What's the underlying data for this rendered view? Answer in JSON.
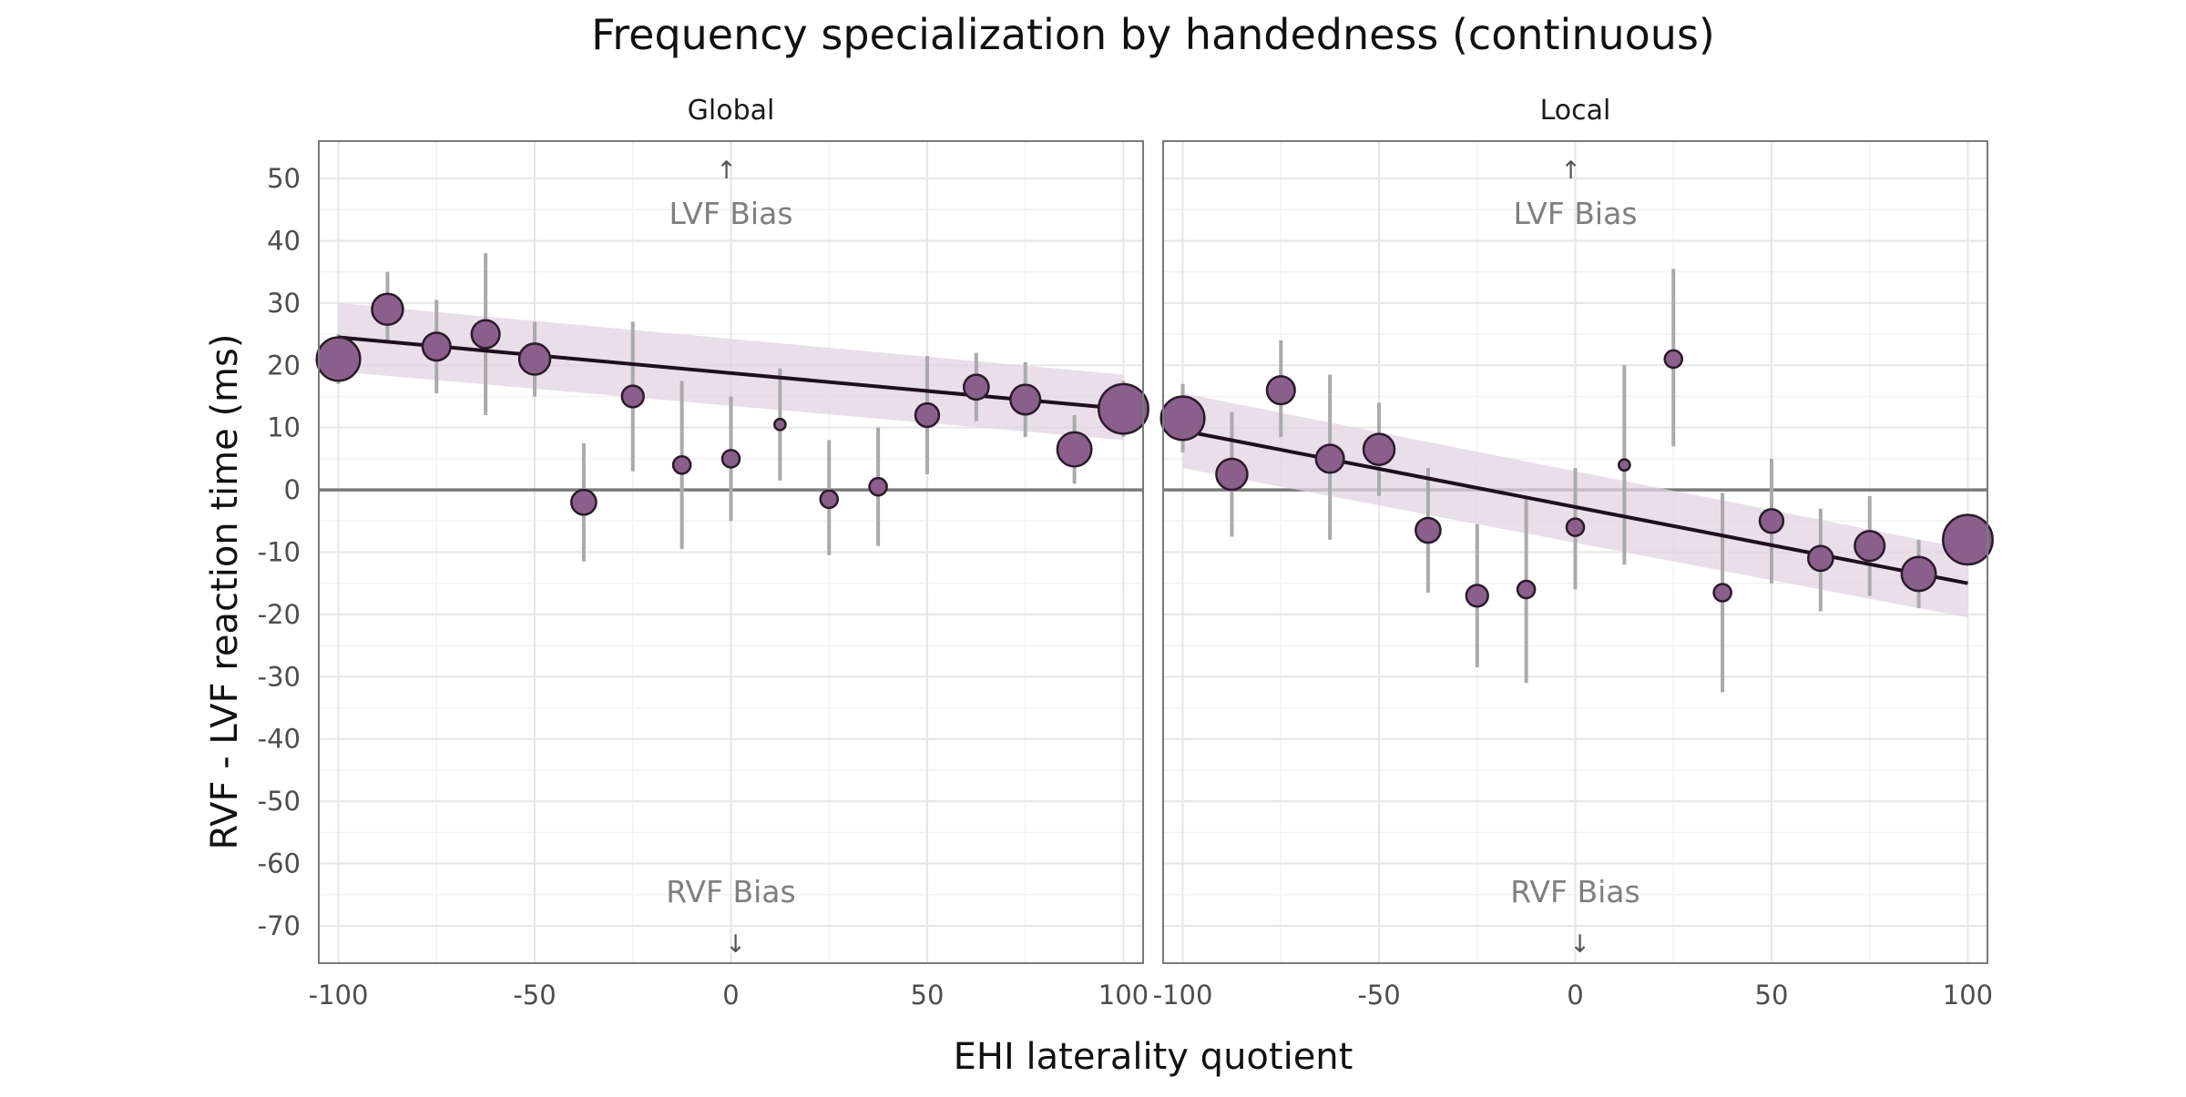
{
  "chart_data": {
    "type": "scatter",
    "title": "Frequency specialization by handedness (continuous)",
    "xlabel": "EHI laterality quotient",
    "ylabel": "RVF - LVF reaction time (ms)",
    "xlim": [
      -105,
      105
    ],
    "ylim": [
      -76,
      56
    ],
    "x_ticks": [
      -100,
      -50,
      0,
      50,
      100
    ],
    "y_ticks": [
      50,
      40,
      30,
      20,
      10,
      0,
      -10,
      -20,
      -30,
      -40,
      -50,
      -60,
      -70
    ],
    "grid": true,
    "reference_line_y": 0,
    "annotations": {
      "top_arrow": "↑",
      "top_label": "LVF Bias",
      "bottom_label": "RVF Bias",
      "bottom_arrow": "↓"
    },
    "colors": {
      "point_fill": "#8b5f8b",
      "point_stroke": "#2a1a2a",
      "ribbon": "#e3d3e2",
      "fit_line": "#1f0f1c",
      "error_bar": "#aaaaaa",
      "zero_line": "#7a7a7a"
    },
    "panels": [
      {
        "label": "Global",
        "fit": {
          "x": [
            -100,
            100
          ],
          "y": [
            24.5,
            13.0
          ]
        },
        "ribbon": {
          "x": [
            -100,
            100
          ],
          "lower": [
            19.0,
            8.0
          ],
          "upper": [
            30.0,
            18.5
          ]
        },
        "points": [
          {
            "x": -100,
            "y": 21.0,
            "ymin": 17.0,
            "ymax": 25.0,
            "size": 7
          },
          {
            "x": -87.5,
            "y": 29.0,
            "ymin": 23.5,
            "ymax": 35.0,
            "size": 5
          },
          {
            "x": -75,
            "y": 23.0,
            "ymin": 15.5,
            "ymax": 30.5,
            "size": 4.5
          },
          {
            "x": -62.5,
            "y": 25.0,
            "ymin": 12.0,
            "ymax": 38.0,
            "size": 4.5
          },
          {
            "x": -50,
            "y": 21.0,
            "ymin": 15.0,
            "ymax": 27.0,
            "size": 5
          },
          {
            "x": -37.5,
            "y": -2.0,
            "ymin": -11.5,
            "ymax": 7.5,
            "size": 4
          },
          {
            "x": -25,
            "y": 15.0,
            "ymin": 3.0,
            "ymax": 27.0,
            "size": 3.5
          },
          {
            "x": -12.5,
            "y": 4.0,
            "ymin": -9.5,
            "ymax": 17.5,
            "size": 2.8
          },
          {
            "x": 0,
            "y": 5.0,
            "ymin": -5.0,
            "ymax": 15.0,
            "size": 2.8
          },
          {
            "x": 12.5,
            "y": 10.5,
            "ymin": 1.5,
            "ymax": 19.5,
            "size": 1.8
          },
          {
            "x": 25,
            "y": -1.5,
            "ymin": -10.5,
            "ymax": 8.0,
            "size": 2.8
          },
          {
            "x": 37.5,
            "y": 0.5,
            "ymin": -9.0,
            "ymax": 10.0,
            "size": 2.8
          },
          {
            "x": 50,
            "y": 12.0,
            "ymin": 2.5,
            "ymax": 21.5,
            "size": 3.8
          },
          {
            "x": 62.5,
            "y": 16.5,
            "ymin": 11.0,
            "ymax": 22.0,
            "size": 4
          },
          {
            "x": 75,
            "y": 14.5,
            "ymin": 8.5,
            "ymax": 20.5,
            "size": 4.8
          },
          {
            "x": 87.5,
            "y": 6.5,
            "ymin": 1.0,
            "ymax": 12.0,
            "size": 5.5
          },
          {
            "x": 100,
            "y": 13.0,
            "ymin": 8.5,
            "ymax": 17.5,
            "size": 8
          }
        ]
      },
      {
        "label": "Local",
        "fit": {
          "x": [
            -100,
            100
          ],
          "y": [
            9.5,
            -15.0
          ]
        },
        "ribbon": {
          "x": [
            -100,
            100
          ],
          "lower": [
            3.5,
            -20.5
          ],
          "upper": [
            15.5,
            -9.5
          ]
        },
        "points": [
          {
            "x": -100,
            "y": 11.5,
            "ymin": 6.0,
            "ymax": 17.0,
            "size": 7
          },
          {
            "x": -87.5,
            "y": 2.5,
            "ymin": -7.5,
            "ymax": 12.5,
            "size": 5
          },
          {
            "x": -75,
            "y": 16.0,
            "ymin": 8.5,
            "ymax": 24.0,
            "size": 4.5
          },
          {
            "x": -62.5,
            "y": 5.0,
            "ymin": -8.0,
            "ymax": 18.5,
            "size": 4.5
          },
          {
            "x": -50,
            "y": 6.5,
            "ymin": -1.0,
            "ymax": 14.0,
            "size": 5
          },
          {
            "x": -37.5,
            "y": -6.5,
            "ymin": -16.5,
            "ymax": 3.5,
            "size": 4
          },
          {
            "x": -25,
            "y": -17.0,
            "ymin": -28.5,
            "ymax": -5.5,
            "size": 3.5
          },
          {
            "x": -12.5,
            "y": -16.0,
            "ymin": -31.0,
            "ymax": -1.0,
            "size": 2.8
          },
          {
            "x": 0,
            "y": -6.0,
            "ymin": -16.0,
            "ymax": 3.5,
            "size": 2.8
          },
          {
            "x": 12.5,
            "y": 4.0,
            "ymin": -12.0,
            "ymax": 20.0,
            "size": 1.8
          },
          {
            "x": 25,
            "y": 21.0,
            "ymin": 7.0,
            "ymax": 35.5,
            "size": 2.8
          },
          {
            "x": 37.5,
            "y": -16.5,
            "ymin": -32.5,
            "ymax": -0.5,
            "size": 2.8
          },
          {
            "x": 50,
            "y": -5.0,
            "ymin": -15.0,
            "ymax": 5.0,
            "size": 3.8
          },
          {
            "x": 62.5,
            "y": -11.0,
            "ymin": -19.5,
            "ymax": -3.0,
            "size": 4
          },
          {
            "x": 75,
            "y": -9.0,
            "ymin": -17.0,
            "ymax": -1.0,
            "size": 4.8
          },
          {
            "x": 87.5,
            "y": -13.5,
            "ymin": -19.0,
            "ymax": -8.0,
            "size": 5.5
          },
          {
            "x": 100,
            "y": -8.0,
            "ymin": -12.0,
            "ymax": -4.0,
            "size": 8
          }
        ]
      }
    ]
  }
}
